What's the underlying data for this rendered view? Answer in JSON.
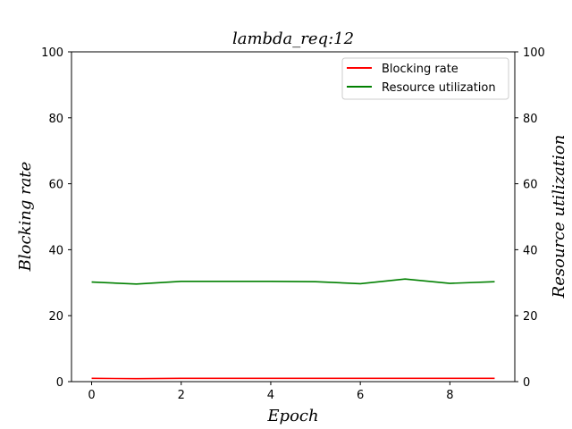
{
  "chart_data": {
    "type": "line",
    "title": "lambda_req:12",
    "xlabel": "Epoch",
    "ylabel": "Blocking rate",
    "y2label": "Resource utilization",
    "x": [
      0,
      1,
      2,
      3,
      4,
      5,
      6,
      7,
      8,
      9
    ],
    "xlim": [
      -0.45,
      9.45
    ],
    "ylim": [
      0,
      100
    ],
    "y2lim": [
      0,
      100
    ],
    "xticks": [
      0,
      2,
      4,
      6,
      8
    ],
    "yticks": [
      0,
      20,
      40,
      60,
      80,
      100
    ],
    "y2ticks": [
      0,
      20,
      40,
      60,
      80,
      100
    ],
    "legend_position": "top-right",
    "grid": false,
    "series": [
      {
        "name": "Blocking rate",
        "color": "#ff0000",
        "axis": "left",
        "values": [
          1.0,
          0.9,
          1.0,
          1.0,
          1.0,
          1.0,
          1.0,
          1.0,
          1.0,
          1.0
        ]
      },
      {
        "name": "Resource utilization",
        "color": "#008000",
        "axis": "right",
        "values": [
          30.2,
          29.6,
          30.4,
          30.4,
          30.4,
          30.3,
          29.7,
          31.1,
          29.8,
          30.3
        ]
      }
    ]
  }
}
